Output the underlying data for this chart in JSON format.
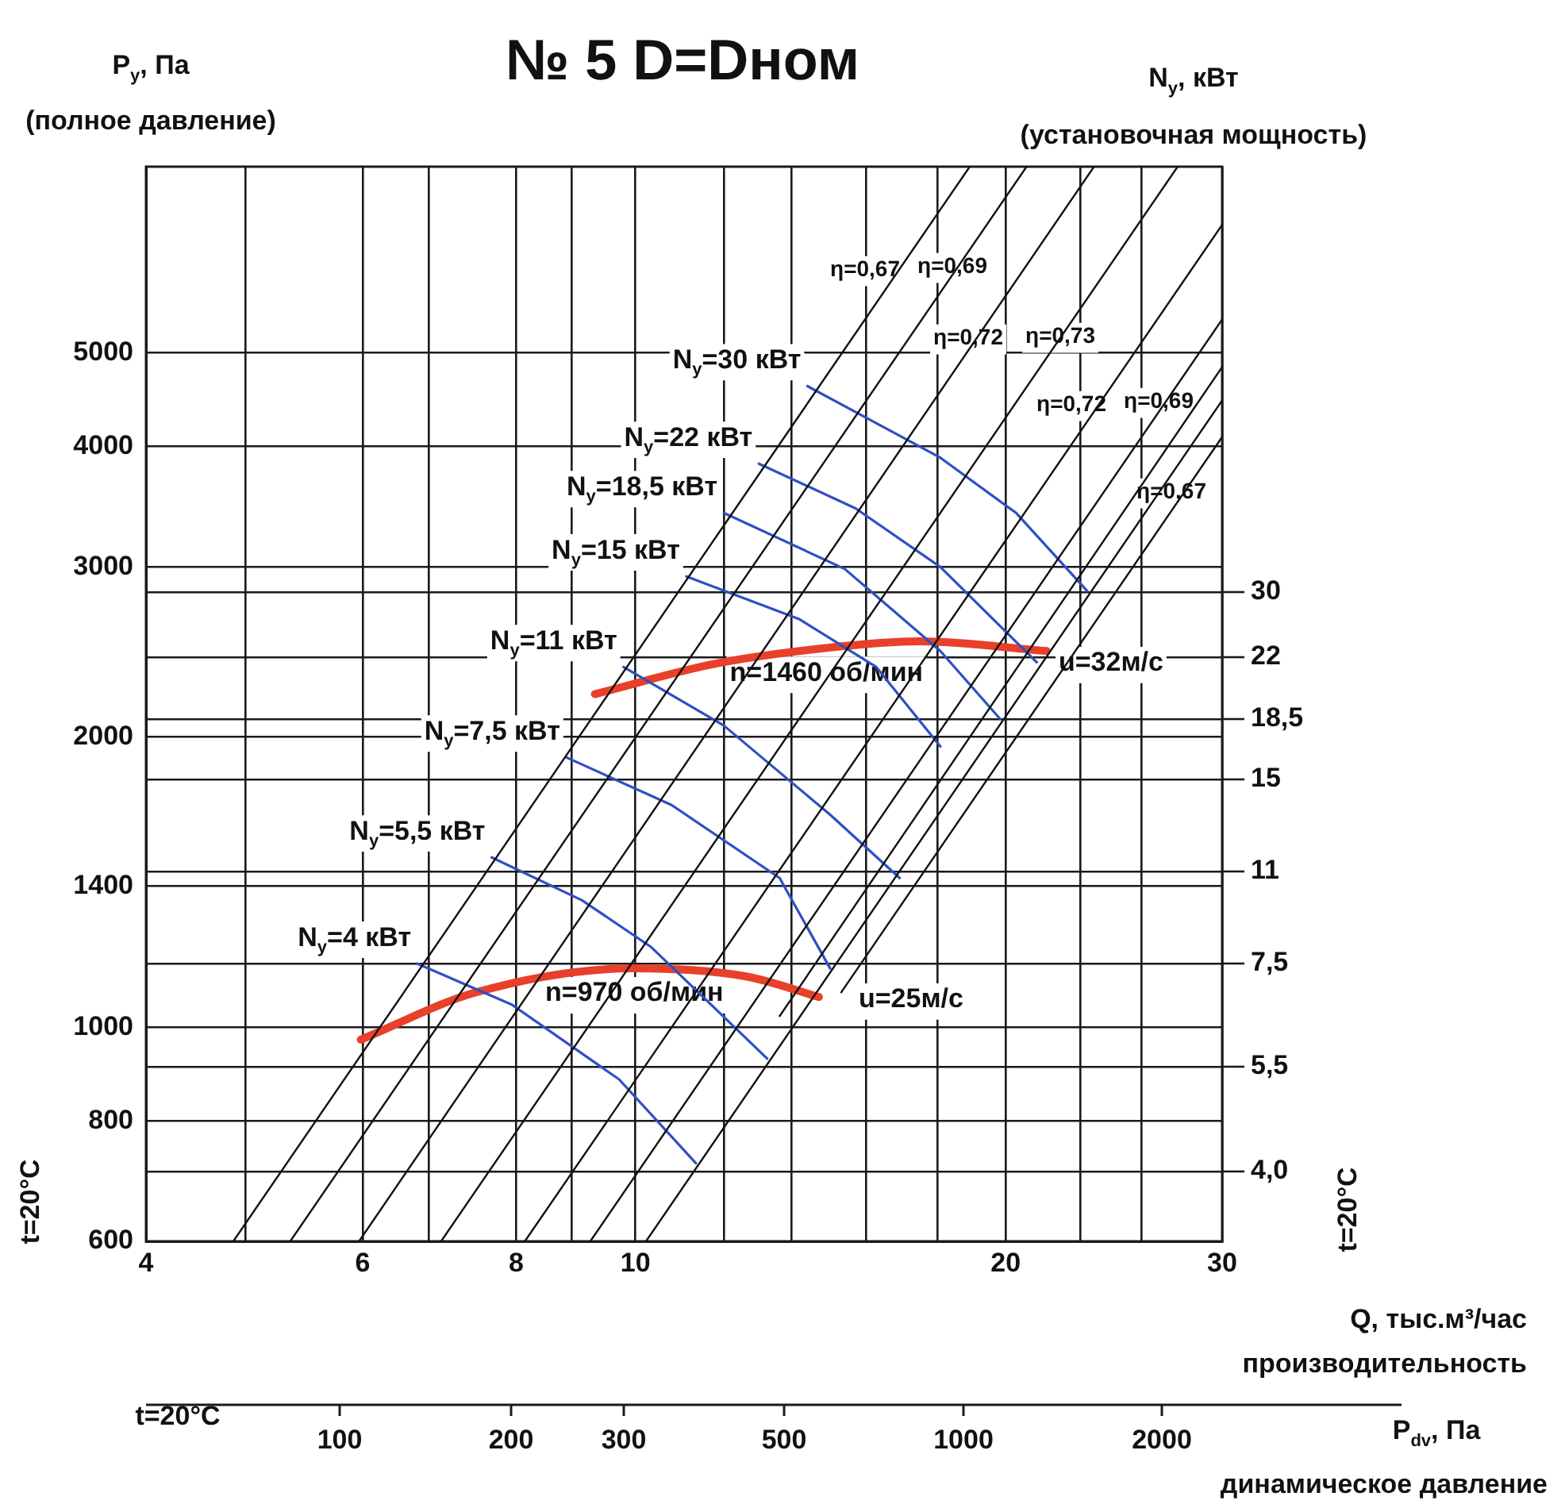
{
  "chart_data": {
    "type": "line",
    "title": "№ 5 D=Dном",
    "ylabel": "P$_{y}$, Па",
    "xlabel": "Q, тыс.м³/час",
    "log": "xy",
    "grid": true,
    "legend": false,
    "marker": "none",
    "xlim": [
      4,
      30
    ],
    "xticks": [
      4,
      {
        "value": 4.82,
        "label": null
      },
      6,
      {
        "value": 6.79,
        "label": null
      },
      8,
      {
        "value": 8.87,
        "label": null
      },
      10,
      {
        "value": 11.8,
        "label": null
      },
      {
        "value": 13.4,
        "label": null
      },
      {
        "value": 15.4,
        "label": null
      },
      {
        "value": 17.6,
        "label": null
      },
      20,
      {
        "value": 23,
        "label": null
      },
      {
        "value": 25.8,
        "label": null
      },
      30
    ],
    "ylim": [
      600,
      7800
    ],
    "yticks": [
      600,
      {
        "value": 709,
        "label": null
      },
      800,
      {
        "value": 909,
        "label": null
      },
      1000,
      {
        "value": 1164,
        "label": null
      },
      1400,
      {
        "value": 1451,
        "label": null
      },
      {
        "value": 1807,
        "label": null
      },
      2000,
      {
        "value": 2087,
        "label": null
      },
      {
        "value": 2418,
        "label": null
      },
      {
        "value": 2824,
        "label": null
      },
      3000,
      4000,
      5000
    ],
    "series": [
      {
        "color": "#111111",
        "x": [
          4.71,
          18.7
        ],
        "values": [
          600,
          7800
        ]
      },
      {
        "color": "#111111",
        "x": [
          5.24,
          20.8
        ],
        "values": [
          600,
          7800
        ]
      },
      {
        "color": "#111111",
        "x": [
          5.96,
          23.6
        ],
        "values": [
          600,
          7800
        ]
      },
      {
        "color": "#111111",
        "x": [
          6.95,
          27.6
        ],
        "values": [
          600,
          7800
        ]
      },
      {
        "color": "#111111",
        "x": [
          8.13,
          30
        ],
        "values": [
          600,
          6790
        ]
      },
      {
        "color": "#111111",
        "x": [
          9.19,
          30
        ],
        "values": [
          600,
          5417
        ]
      },
      {
        "color": "#111111",
        "x": [
          10.2,
          30
        ],
        "values": [
          600,
          4465
        ]
      },
      {
        "color": "#111111",
        "x": [
          13.1,
          30
        ],
        "values": [
          1027,
          4836
        ]
      },
      {
        "color": "#111111",
        "x": [
          14.7,
          30
        ],
        "values": [
          1087,
          4092
        ]
      },
      {
        "name": "N$_{y}$=30 кВт",
        "color": "#2f4fc4",
        "x": [
          13.8,
          17.7,
          20.4,
          23.3
        ],
        "values": [
          4620,
          3894,
          3413,
          2833
        ]
      },
      {
        "name": "N$_{y}$=22 кВт",
        "color": "#2f4fc4",
        "x": [
          12.6,
          15.1,
          17.7,
          21.2
        ],
        "values": [
          3839,
          3451,
          3000,
          2390
        ]
      },
      {
        "name": "N$_{y}$=18,5 кВт",
        "color": "#2f4fc4",
        "x": [
          11.8,
          14.8,
          17.7,
          19.8
        ],
        "values": [
          3413,
          2986,
          2455,
          2087
        ]
      },
      {
        "name": "N$_{y}$=15 кВт",
        "color": "#2f4fc4",
        "x": [
          11.0,
          13.6,
          15.7,
          17.7
        ],
        "values": [
          2934,
          2648,
          2363,
          1955
        ]
      },
      {
        "name": "N$_{y}$=11 кВт",
        "color": "#2f4fc4",
        "x": [
          9.78,
          11.8,
          14.4,
          16.4
        ],
        "values": [
          2363,
          2055,
          1661,
          1428
        ]
      },
      {
        "name": "N$_{y}$=7,5 кВт",
        "color": "#2f4fc4",
        "x": [
          8.79,
          10.7,
          13.1,
          14.4
        ],
        "values": [
          1904,
          1700,
          1428,
          1151
        ]
      },
      {
        "name": "N$_{y}$=5,5 кВт",
        "color": "#2f4fc4",
        "x": [
          7.64,
          9.05,
          10.3,
          12.8
        ],
        "values": [
          1500,
          1354,
          1211,
          928
        ]
      },
      {
        "name": "N$_{y}$=4 кВт",
        "color": "#2f4fc4",
        "x": [
          6.65,
          7.94,
          9.7,
          11.2
        ],
        "values": [
          1164,
          1055,
          883,
          723
        ]
      },
      {
        "name": "n=1460 об/мин",
        "color": "#e8402a",
        "x": [
          9.27,
          11.6,
          14.3,
          17.0,
          21.6
        ],
        "values": [
          2215,
          2381,
          2473,
          2512,
          2455
        ]
      },
      {
        "name": "n=970 об/мин",
        "color": "#e8402a",
        "x": [
          5.98,
          7.42,
          9.98,
          12.3,
          14.1
        ],
        "values": [
          971,
          1087,
          1151,
          1129,
          1075
        ]
      }
    ],
    "annotations": [
      "(полное давление)",
      "(установочная мощность)",
      "производительность",
      "динамическое давление",
      "t=20°C",
      "t=20°C",
      "t=20°C",
      "η=0,67",
      "η=0,69",
      "η=0,72",
      "η=0,73",
      "η=0,72",
      "η=0,69",
      "η=0,67",
      "u=32м/с",
      "u=25м/с",
      "N$_{y}$, кВт",
      "P$_{dv}$, Па",
      "30",
      "22",
      "18,5",
      "15",
      "11",
      "7,5",
      "5,5",
      "4,0",
      "100",
      "200",
      "300",
      "500",
      "1000",
      "2000"
    ]
  }
}
